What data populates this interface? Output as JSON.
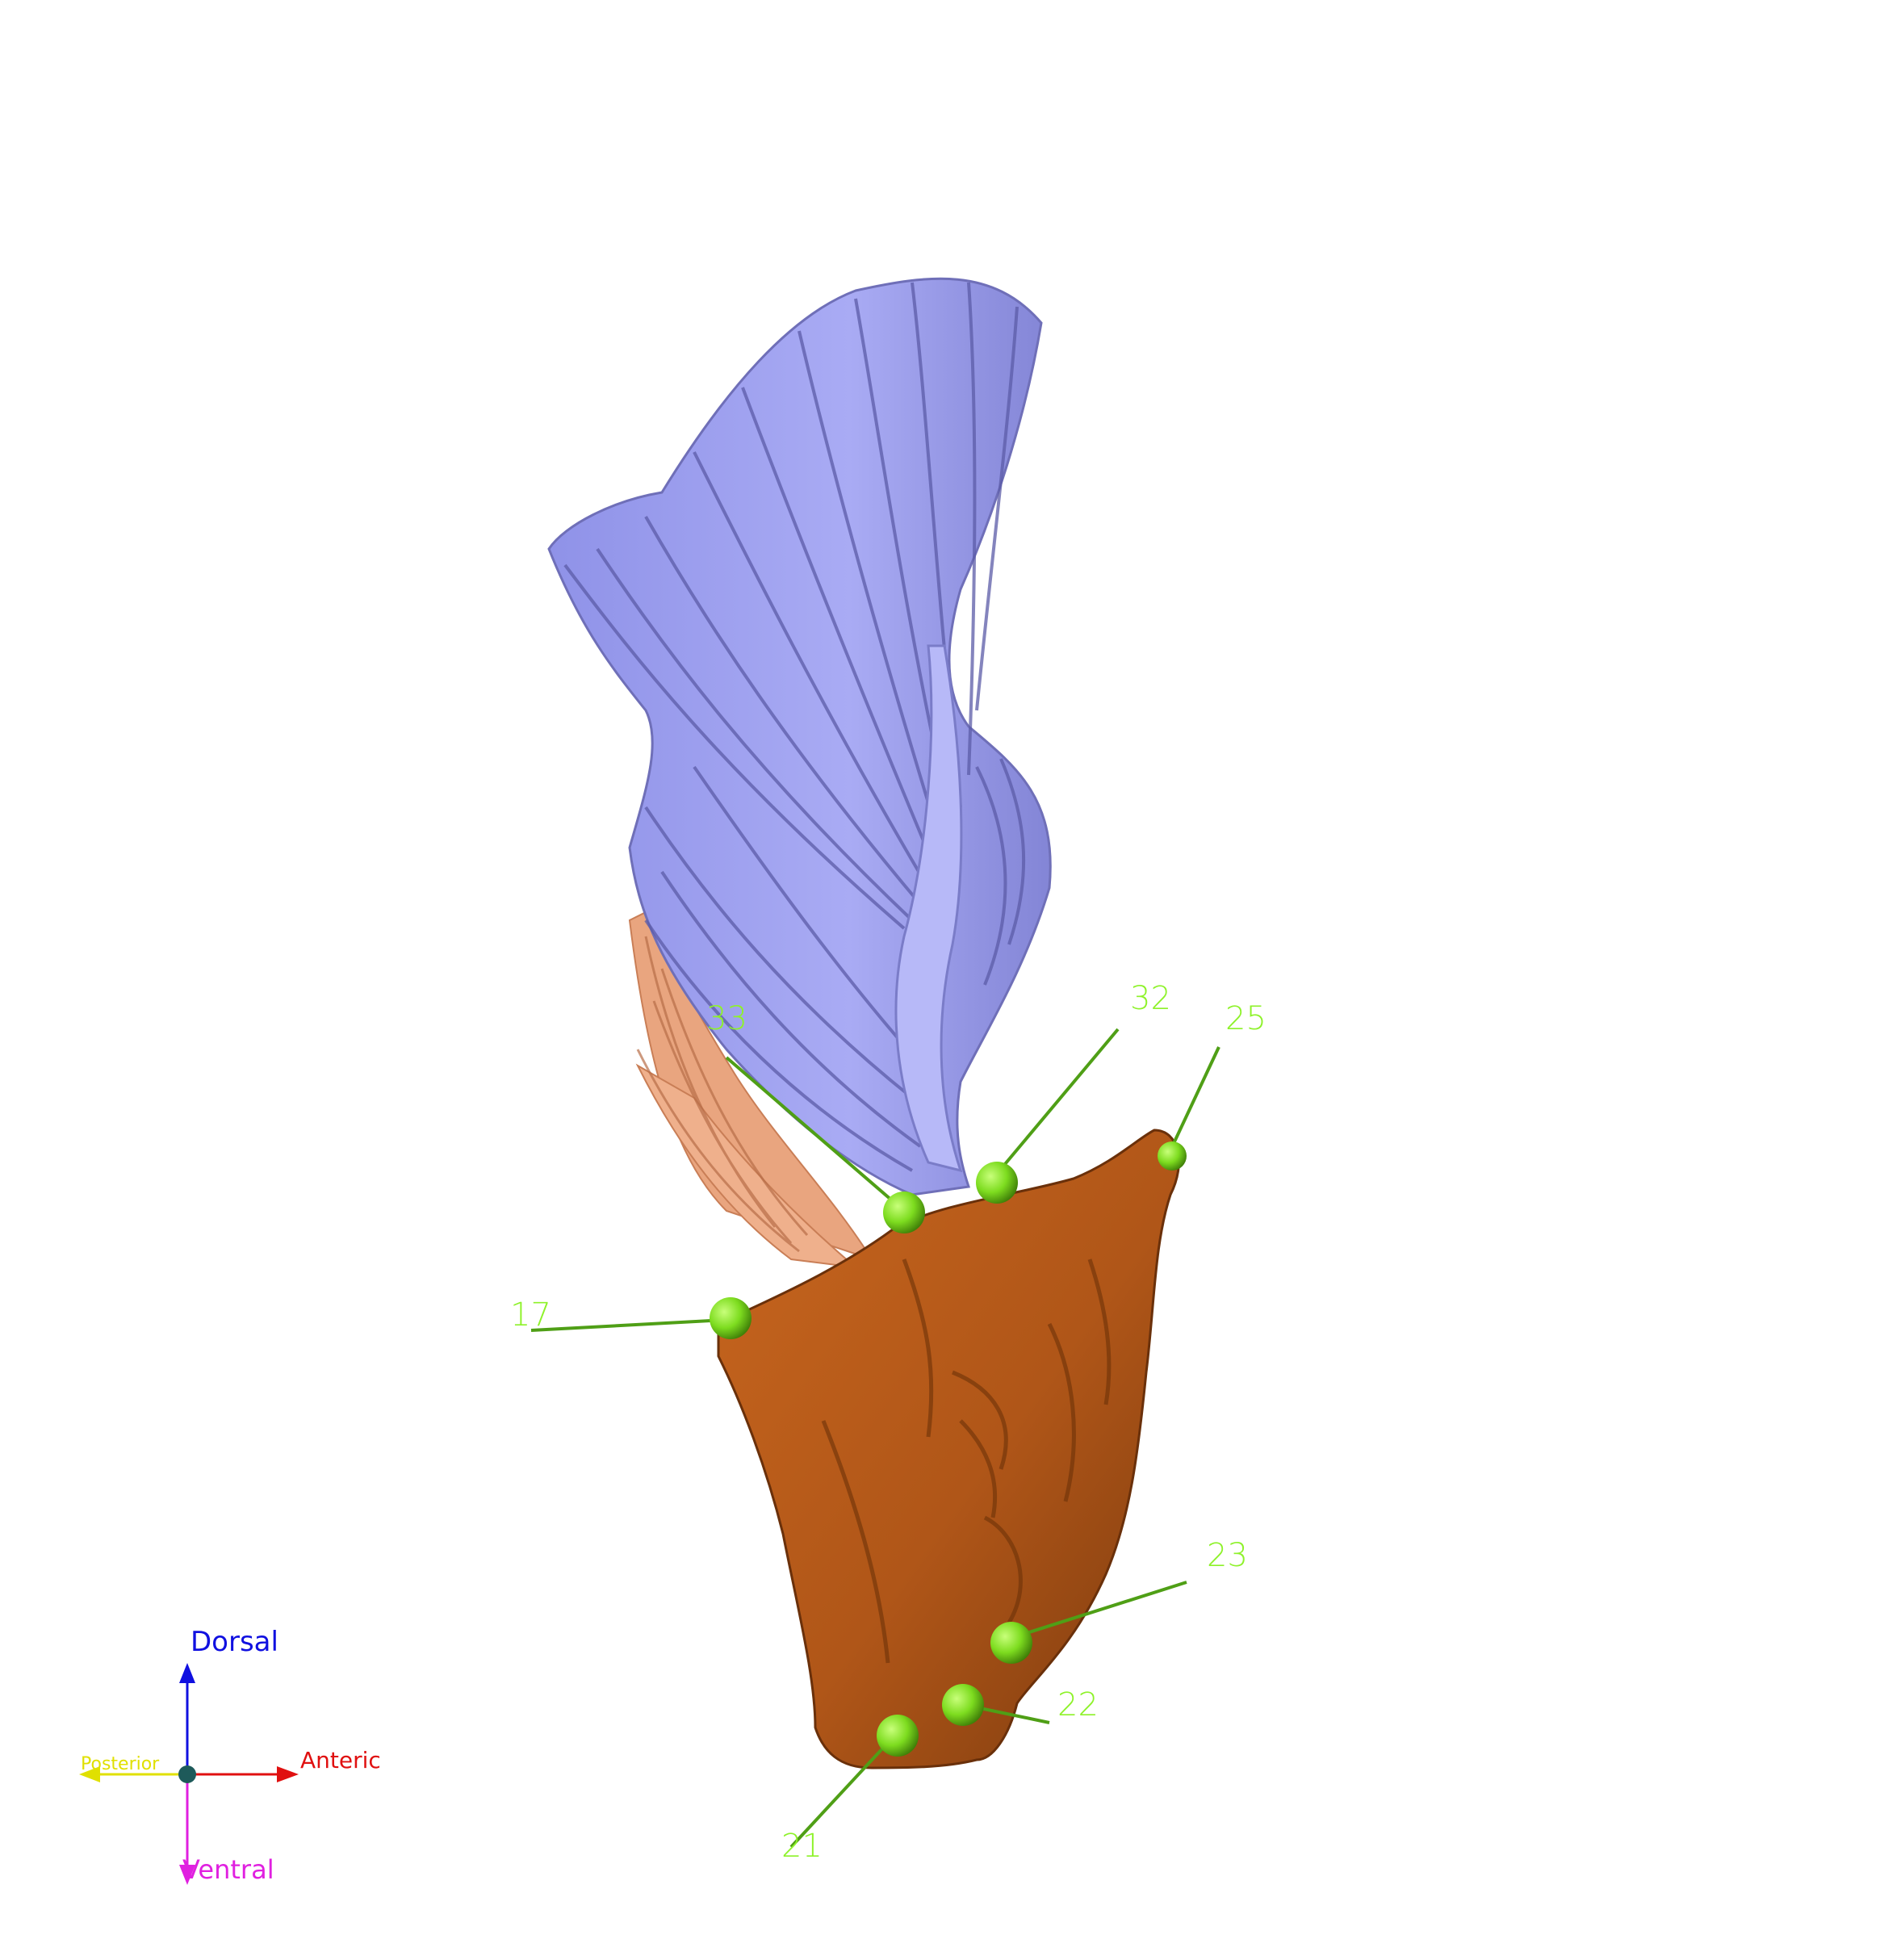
{
  "scene": {
    "background": "#ffffff",
    "muscle_fibers_color": "#9c9ef0",
    "muscle_fibers_shade": "#6f6fb8",
    "secondary_fibers_color": "#e9a57f",
    "bone_color": "#b55a1c",
    "bone_shade": "#7a3a0e",
    "landmark_color": "#7ddc1f",
    "landmark_label_color": "#8ef22a"
  },
  "landmarks": [
    {
      "id": "33",
      "label": "33"
    },
    {
      "id": "32",
      "label": "32"
    },
    {
      "id": "25",
      "label": "25"
    },
    {
      "id": "17",
      "label": "17"
    },
    {
      "id": "23",
      "label": "23"
    },
    {
      "id": "22",
      "label": "22"
    },
    {
      "id": "21",
      "label": "21"
    }
  ],
  "orientation": {
    "dorsal": {
      "label": "Dorsal",
      "color": "#1010e0"
    },
    "ventral": {
      "label": "Ventral",
      "color": "#e020e0"
    },
    "anterior": {
      "label": "Anteric",
      "color": "#e01010"
    },
    "posterior": {
      "label": "Posterior",
      "color": "#e0e000"
    },
    "origin_color": "#1e5a5a"
  }
}
